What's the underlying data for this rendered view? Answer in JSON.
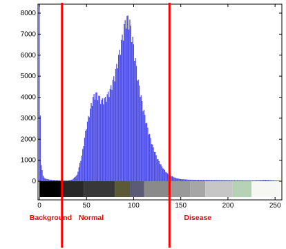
{
  "chart_data": {
    "type": "bar",
    "xlim": [
      0,
      255
    ],
    "ylim": [
      0,
      8000
    ],
    "x_ticks": [
      0,
      50,
      100,
      150,
      200,
      250
    ],
    "x_tick_labels": [
      "0",
      "50",
      "100",
      "150",
      "200",
      "250"
    ],
    "y_ticks": [
      0,
      1000,
      2000,
      3000,
      4000,
      5000,
      6000,
      7000,
      8000
    ],
    "y_tick_labels": [
      "0",
      "1000",
      "2000",
      "3000",
      "4000",
      "5000",
      "6000",
      "7000",
      "8000"
    ],
    "grid": false,
    "bar_color": "#4a4ae8",
    "threshold_color": "#ff0000",
    "histogram_points": [
      [
        0,
        8400
      ],
      [
        1,
        3000
      ],
      [
        2,
        800
      ],
      [
        4,
        250
      ],
      [
        6,
        130
      ],
      [
        10,
        80
      ],
      [
        15,
        60
      ],
      [
        20,
        50
      ],
      [
        25,
        40
      ],
      [
        30,
        35
      ],
      [
        35,
        80
      ],
      [
        40,
        300
      ],
      [
        45,
        1200
      ],
      [
        50,
        2600
      ],
      [
        55,
        3600
      ],
      [
        57,
        3950
      ],
      [
        60,
        4150
      ],
      [
        63,
        4000
      ],
      [
        66,
        3800
      ],
      [
        70,
        3900
      ],
      [
        75,
        4300
      ],
      [
        80,
        5000
      ],
      [
        85,
        6100
      ],
      [
        88,
        6800
      ],
      [
        90,
        7300
      ],
      [
        92,
        7650
      ],
      [
        94,
        7700
      ],
      [
        96,
        7500
      ],
      [
        99,
        6700
      ],
      [
        102,
        5700
      ],
      [
        105,
        4700
      ],
      [
        110,
        3500
      ],
      [
        115,
        2500
      ],
      [
        120,
        1700
      ],
      [
        125,
        1100
      ],
      [
        130,
        700
      ],
      [
        135,
        400
      ],
      [
        140,
        250
      ],
      [
        145,
        150
      ],
      [
        150,
        100
      ],
      [
        160,
        70
      ],
      [
        175,
        60
      ],
      [
        200,
        50
      ],
      [
        225,
        40
      ],
      [
        240,
        60
      ],
      [
        255,
        30
      ]
    ],
    "thresholds": [
      24,
      138
    ],
    "region_labels": [
      {
        "text": "Background",
        "x": 12
      },
      {
        "text": "Normal",
        "x": 55
      },
      {
        "text": "Disease",
        "x": 168
      }
    ],
    "colorbar": [
      {
        "from": 0,
        "to": 25,
        "color": "#000000"
      },
      {
        "from": 25,
        "to": 47,
        "color": "#282828"
      },
      {
        "from": 47,
        "to": 80,
        "color": "#383838"
      },
      {
        "from": 80,
        "to": 96,
        "color": "#5a5a36"
      },
      {
        "from": 96,
        "to": 111,
        "color": "#5b5b76"
      },
      {
        "from": 111,
        "to": 140,
        "color": "#8a8a8a"
      },
      {
        "from": 140,
        "to": 160,
        "color": "#999999"
      },
      {
        "from": 160,
        "to": 176,
        "color": "#a6a6a6"
      },
      {
        "from": 176,
        "to": 205,
        "color": "#c6c6c6"
      },
      {
        "from": 205,
        "to": 225,
        "color": "#b6d2b6"
      },
      {
        "from": 225,
        "to": 255,
        "color": "#f6f6f2"
      }
    ]
  }
}
